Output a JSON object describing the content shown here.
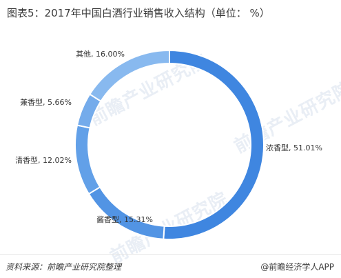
{
  "header": {
    "title": "图表5：2017年中国白酒行业销售收入结构（单位： %）"
  },
  "chart_data": {
    "type": "pie",
    "donut": true,
    "categories": [
      "浓香型",
      "酱香型",
      "清香型",
      "兼香型",
      "其他"
    ],
    "values": [
      51.01,
      15.31,
      12.02,
      5.66,
      16.0
    ],
    "labels": [
      "浓香型, 51.01%",
      "酱香型, 15.31%",
      "清香型, 12.02%",
      "兼香型, 5.66%",
      "其他, 16.00%"
    ],
    "colors": [
      "#3f86e0",
      "#5294e4",
      "#62a0e8",
      "#74abeb",
      "#88b9ef"
    ],
    "legend": "none",
    "start_angle": "12 o'clock, clockwise"
  },
  "watermark": {
    "text": "前瞻产业研究院"
  },
  "footer": {
    "source": "资料来源：前瞻产业研究院整理",
    "brand": "@前瞻经济学人APP"
  }
}
